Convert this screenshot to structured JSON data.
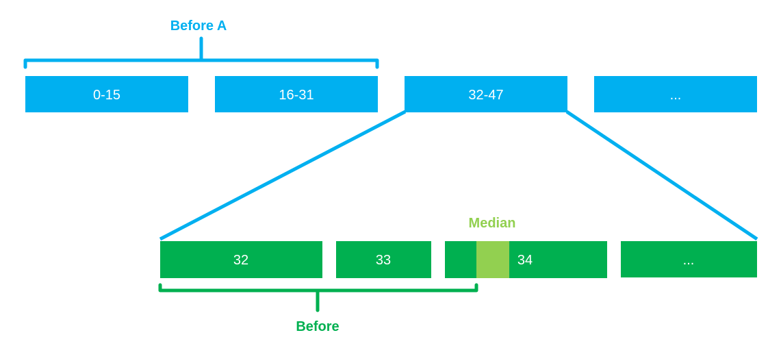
{
  "colors": {
    "blue": "#00b0f0",
    "green": "#00b050",
    "light_green": "#92d050",
    "white": "#ffffff"
  },
  "top_row": {
    "bracket_label": "Before A",
    "boxes": [
      "0-15",
      "16-31",
      "32-47",
      "..."
    ]
  },
  "bottom_row": {
    "boxes": [
      "32",
      "33",
      "34",
      "..."
    ],
    "median_label": "Median",
    "bracket_label": "Before"
  }
}
